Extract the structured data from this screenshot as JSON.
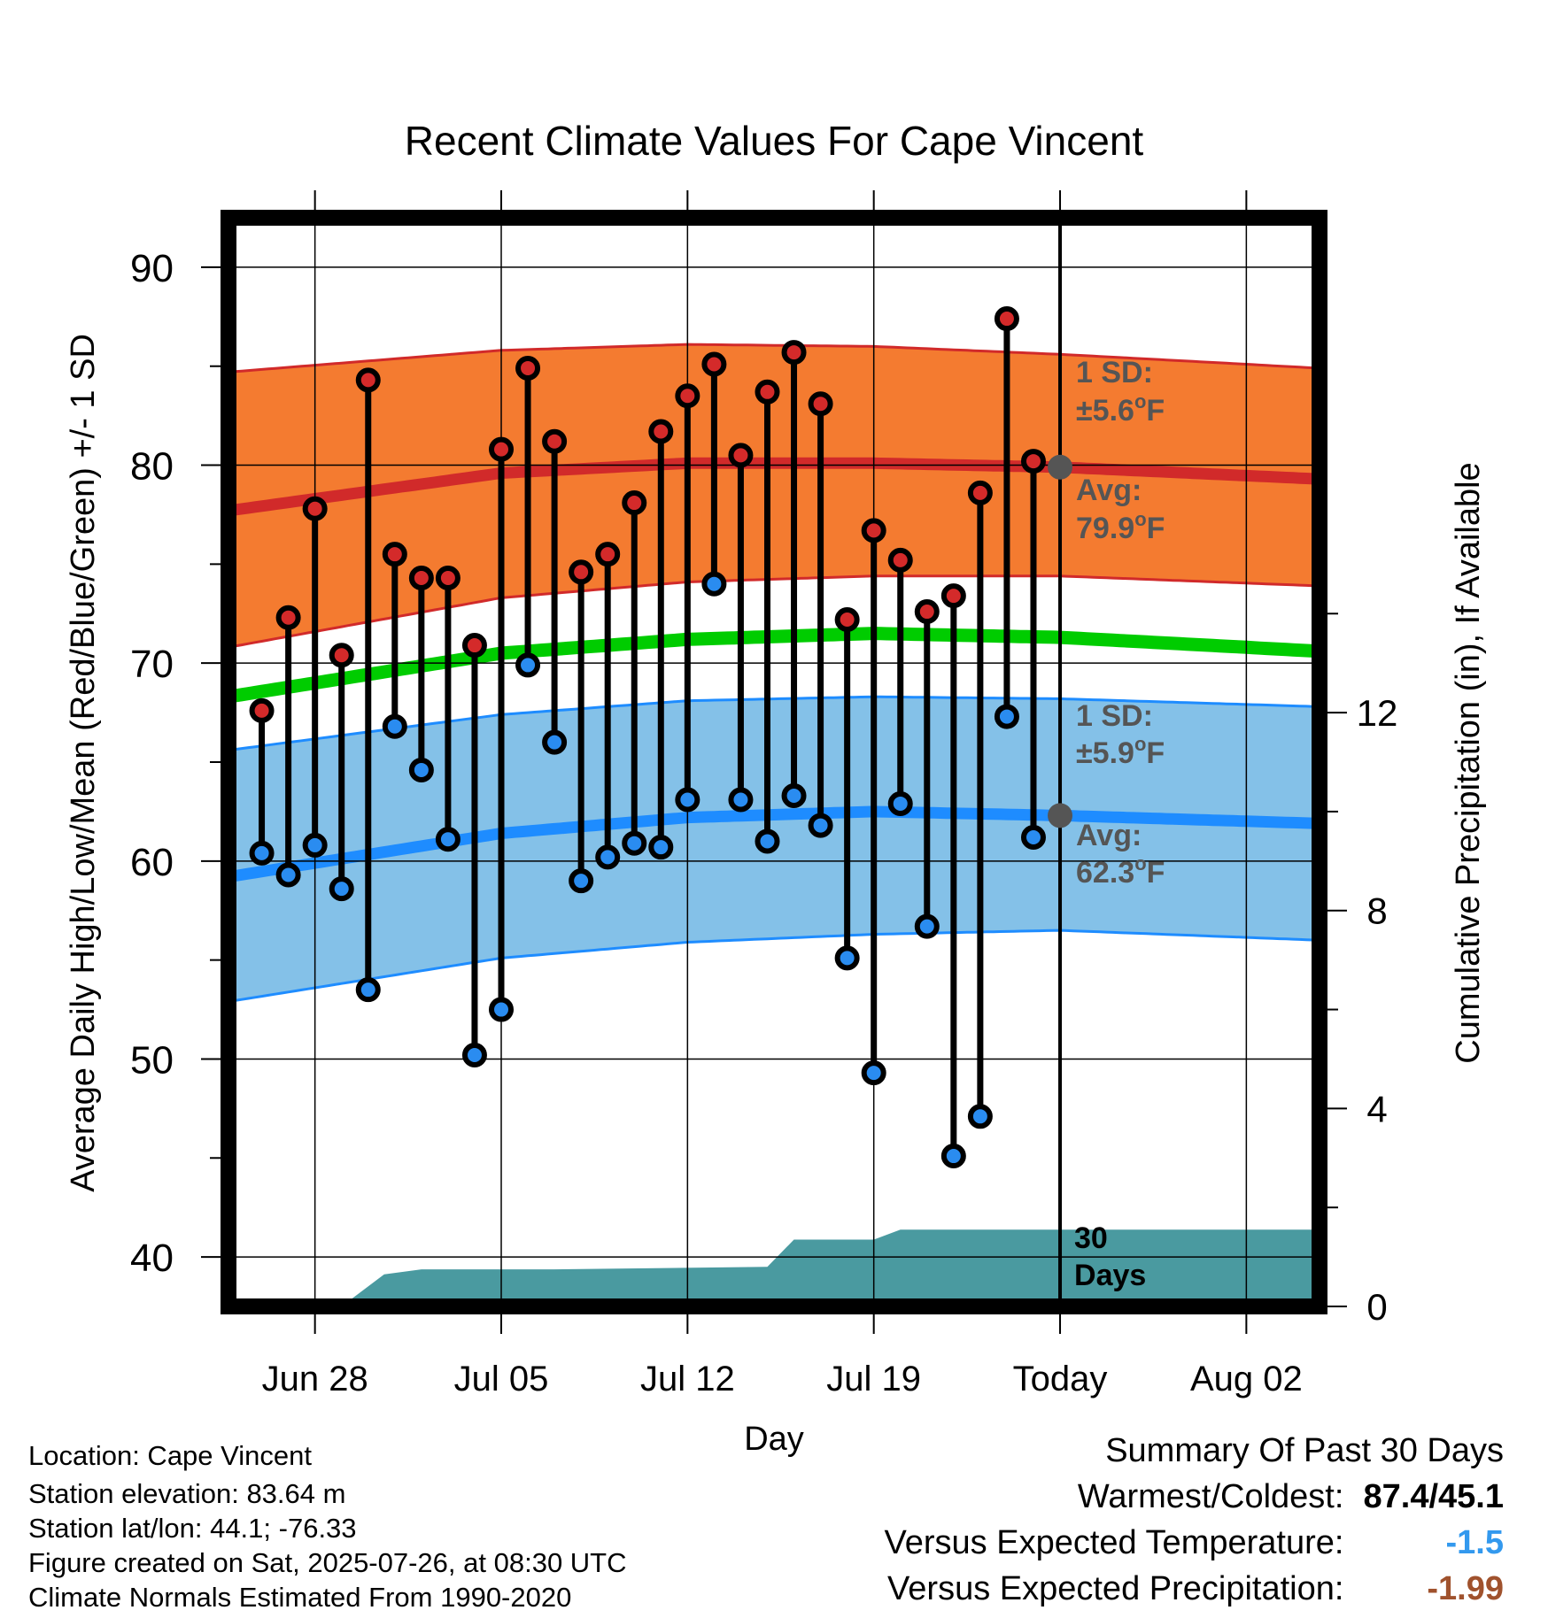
{
  "chart_data": {
    "type": "line",
    "title": "Recent Climate Values For Cape Vincent",
    "xlabel": "Day",
    "ylabel": "Average Daily High/Low/Mean (Red/Blue/Green) +/- 1 SD",
    "y2label": "Cumulative Precipitation (in), If Available",
    "ylim": [
      37.5,
      92.5
    ],
    "y2lim": [
      0,
      22
    ],
    "y_ticks": [
      "40",
      "50",
      "60",
      "70",
      "80",
      "90"
    ],
    "y2_ticks": [
      "0",
      "4",
      "8",
      "12"
    ],
    "x_ticks": [
      {
        "label": "Jun 28",
        "day": 3
      },
      {
        "label": "Jul 05",
        "day": 10
      },
      {
        "label": "Jul 12",
        "day": 17
      },
      {
        "label": "Jul 19",
        "day": 24
      },
      {
        "label": "Today",
        "day": 31
      },
      {
        "label": "Aug 02",
        "day": 38
      }
    ],
    "xlim": [
      -0.25,
      40.75
    ],
    "today_day": 31,
    "normals": {
      "days": [
        -0.25,
        10,
        17,
        24,
        31,
        40.75
      ],
      "high_avg": [
        77.7,
        79.6,
        80.1,
        80.1,
        79.9,
        79.3
      ],
      "high_upper": [
        84.7,
        85.8,
        86.1,
        86.0,
        85.6,
        84.9
      ],
      "high_lower": [
        70.8,
        73.3,
        74.1,
        74.4,
        74.4,
        73.9
      ],
      "mean_avg": [
        68.3,
        70.5,
        71.2,
        71.5,
        71.3,
        70.6
      ],
      "low_avg": [
        59.2,
        61.4,
        62.2,
        62.5,
        62.3,
        61.9
      ],
      "low_upper": [
        65.6,
        67.4,
        68.1,
        68.3,
        68.2,
        67.8
      ],
      "low_lower": [
        52.9,
        55.1,
        55.9,
        56.3,
        56.5,
        56.0
      ]
    },
    "daily": {
      "days": [
        1,
        2,
        3,
        4,
        5,
        6,
        7,
        8,
        9,
        10,
        11,
        12,
        13,
        14,
        15,
        16,
        17,
        18,
        19,
        20,
        21,
        22,
        23,
        24,
        25,
        26,
        27,
        28,
        29,
        30
      ],
      "high": [
        67.6,
        72.3,
        77.8,
        70.4,
        84.3,
        75.5,
        74.3,
        74.3,
        70.9,
        80.8,
        84.9,
        81.2,
        74.6,
        75.5,
        78.1,
        81.7,
        83.5,
        85.1,
        80.5,
        83.7,
        85.7,
        83.1,
        72.2,
        76.7,
        75.2,
        72.6,
        73.4,
        78.6,
        87.4,
        80.2
      ],
      "low": [
        60.4,
        59.3,
        60.8,
        58.6,
        53.5,
        66.8,
        64.6,
        61.1,
        50.2,
        52.5,
        69.9,
        66.0,
        59.0,
        60.2,
        60.9,
        60.7,
        63.1,
        74.0,
        63.1,
        61.0,
        63.3,
        61.8,
        55.1,
        49.3,
        62.9,
        56.7,
        45.1,
        47.1,
        67.3,
        61.2
      ]
    },
    "precip": {
      "days": [
        4,
        5.6,
        7,
        12,
        20,
        21,
        23.3,
        24,
        25,
        40.75
      ],
      "values": [
        0,
        0.65,
        0.75,
        0.75,
        0.8,
        1.35,
        1.35,
        1.35,
        1.55,
        1.55
      ]
    },
    "annotations": {
      "high_sd_label": "1 SD:",
      "high_sd_value": "±5.6",
      "high_avg_label": "Avg:",
      "high_avg_value": "79.9",
      "low_sd_label": "1 SD:",
      "low_sd_value": "±5.9",
      "low_avg_label": "Avg:",
      "low_avg_value": "62.3",
      "degree_unit": "o",
      "f_unit": "F",
      "days_label_1": "30",
      "days_label_2": "Days",
      "high_avg_today": 79.9,
      "low_avg_today": 62.3
    },
    "colors": {
      "high_band": "#f47b30",
      "high_line": "#d12a2a",
      "low_band": "#84c1e8",
      "low_line": "#1e8cff",
      "mean_line": "#00cc00",
      "precip_fill": "#4a9aa0",
      "annot_text": "#555555",
      "high_dot": "#d42a2a",
      "low_dot": "#2a8cf0"
    }
  },
  "info": {
    "location": "Location: Cape Vincent",
    "elevation": "Station elevation: 83.64 m",
    "latlon": "Station lat/lon: 44.1; -76.33",
    "created": "Figure created on Sat, 2025-07-26, at 08:30 UTC",
    "normals": "Climate Normals Estimated From 1990-2020"
  },
  "summary": {
    "title": "Summary Of Past 30 Days",
    "warmest_coldest_label": "Warmest/Coldest:",
    "warmest_coldest_value": "87.4/45.1",
    "temp_label": "Versus Expected Temperature:",
    "temp_value": "-1.5",
    "temp_color": "#3399ee",
    "precip_label": "Versus Expected Precipitation:",
    "precip_value": "-1.99",
    "precip_color": "#a0522d"
  }
}
